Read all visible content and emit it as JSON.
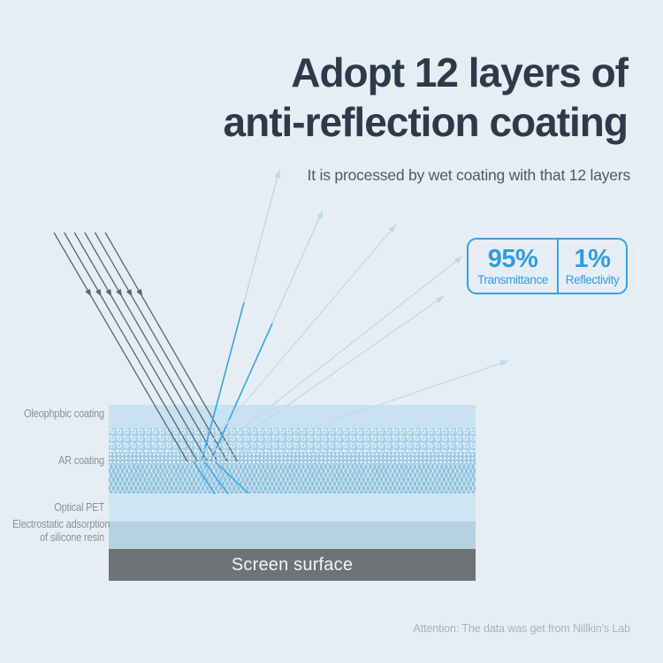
{
  "header": {
    "title_line1": "Adopt 12 layers of",
    "title_line2": "anti-reflection coating",
    "subtitle": "It is processed by wet coating with that 12 layers"
  },
  "stats": {
    "transmittance": {
      "value": "95%",
      "label": "Transmittance"
    },
    "reflectivity": {
      "value": "1%",
      "label": "Reflectivity"
    }
  },
  "layer_labels": {
    "oleophobic": "Oleophpbic coating",
    "ar": "AR coating",
    "pet": "Optical PET",
    "electrostatic_line1": "Electrostatic adsorption",
    "electrostatic_line2": "of silicone resin"
  },
  "screen_surface_label": "Screen surface",
  "footer": {
    "attention": "Attention: The data was get from Nillkin's Lab"
  },
  "colors": {
    "background": "#e7edf5",
    "title": "#2d3a4b",
    "accent_blue": "#36a2de",
    "stat_text_blue": "#2d9de0",
    "incoming_ray": "#5d646c",
    "bright_ray": "#38a5e2",
    "faint_ray": "#bcd9ec",
    "screen_surface_gray": "#707376"
  }
}
